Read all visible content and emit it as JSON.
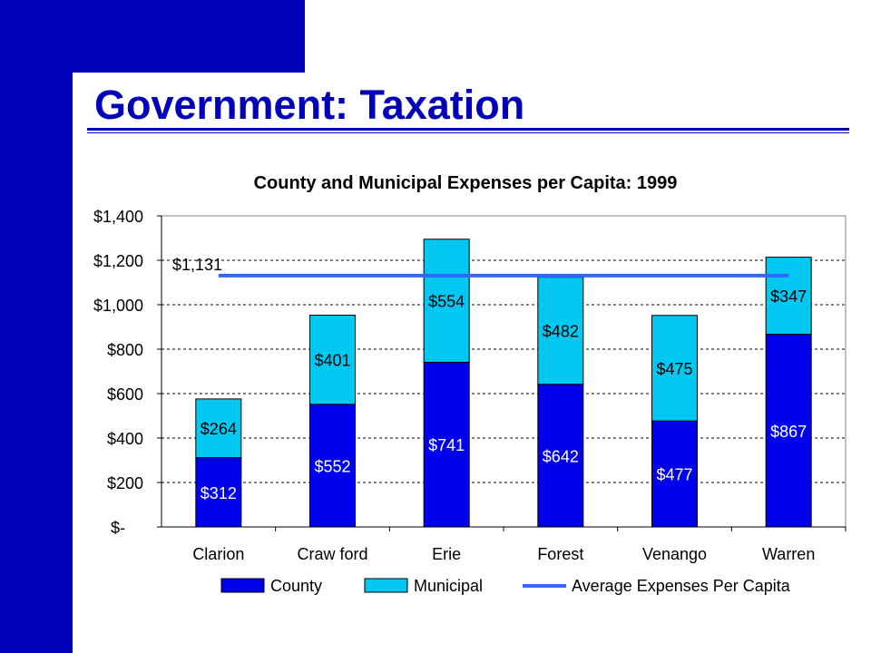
{
  "slide": {
    "title": "Government:  Taxation",
    "colors": {
      "brand": "#0000b8",
      "county": "#0000ee",
      "municipal": "#00c8f0",
      "average": "#3366ff"
    }
  },
  "chart_data": {
    "type": "bar",
    "stacked": true,
    "title": "County and Municipal Expenses per Capita: 1999",
    "categories": [
      "Clarion",
      "Craw ford",
      "Erie",
      "Forest",
      "Venango",
      "Warren"
    ],
    "series": [
      {
        "name": "County",
        "values": [
          312,
          552,
          741,
          642,
          477,
          867
        ],
        "labels": [
          "$312",
          "$552",
          "$741",
          "$642",
          "$477",
          "$867"
        ]
      },
      {
        "name": "Municipal",
        "values": [
          264,
          401,
          554,
          482,
          475,
          347
        ],
        "labels": [
          "$264",
          "$401",
          "$554",
          "$482",
          "$475",
          "$347"
        ]
      }
    ],
    "average_line": {
      "name": "Average Expenses Per Capita",
      "value": 1131,
      "label": "$1,131"
    },
    "ylim": [
      0,
      1400
    ],
    "yticks": [
      0,
      200,
      400,
      600,
      800,
      1000,
      1200,
      1400
    ],
    "ytick_labels": [
      "$-",
      "$200",
      "$400",
      "$600",
      "$800",
      "$1,000",
      "$1,200",
      "$1,400"
    ],
    "xlabel": "",
    "ylabel": "",
    "grid": true,
    "legend_position": "bottom"
  }
}
